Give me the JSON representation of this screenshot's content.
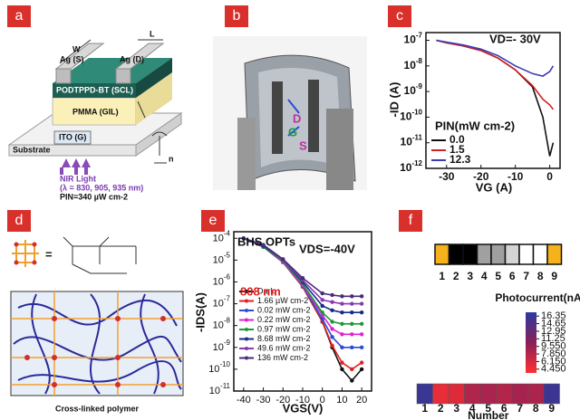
{
  "panel_labels": [
    "a",
    "b",
    "c",
    "d",
    "e",
    "f"
  ],
  "panel_a": {
    "width": "W",
    "length": "L",
    "source": "Ag (S)",
    "drain": "Ag (D)",
    "semiconductor": "PODTPPD-BT (SCL)",
    "dielectric": "PMMA (GIL)",
    "gate": "ITO (G)",
    "substrate": "Substrate",
    "light": "NIR Light",
    "wavelengths": "(λ = 830, 905, 935 nm)",
    "power": "PIN=340 µW cm-2",
    "repeat": "n"
  },
  "panel_b": {
    "labels": [
      "D",
      "G",
      "S"
    ]
  },
  "chart_data": [
    {
      "type": "line",
      "log_y": true,
      "markers": false,
      "x": [
        -33,
        -30,
        -25,
        -20,
        -15,
        -10,
        -5,
        -2,
        0,
        1
      ],
      "xlim": [
        -36,
        3
      ],
      "xticks": [
        -30,
        -20,
        -10,
        0
      ],
      "ylim": [
        1e-12,
        2e-07
      ],
      "yticks": [
        {
          "value": 1e-12,
          "label": "10-12"
        },
        {
          "value": 1e-11,
          "label": "10-11"
        },
        {
          "value": 1e-10,
          "label": "10-10"
        },
        {
          "value": 1e-09,
          "label": "10-9"
        },
        {
          "value": 1e-08,
          "label": "10-8"
        },
        {
          "value": 1e-07,
          "label": "10-7"
        }
      ],
      "xlabel": "VG (A)",
      "ylabel": "-ID (A)",
      "annotations": [
        "VD=- 30V"
      ],
      "legend_title": "PIN(mW cm-2)",
      "legend_loc": "lower left",
      "series": [
        {
          "name": "0.0",
          "color": "#111111",
          "values": [
            1e-07,
            8e-08,
            6e-08,
            4e-08,
            2e-08,
            7e-09,
            1.5e-09,
            1e-10,
            3e-12,
            1e-11
          ]
        },
        {
          "name": "1.5",
          "color": "#d42020",
          "values": [
            1e-07,
            8e-08,
            6e-08,
            4e-08,
            2e-08,
            7e-09,
            1.7e-09,
            5e-10,
            3e-10,
            2e-10
          ]
        },
        {
          "name": "12.3",
          "color": "#3b3bb5",
          "values": [
            1e-07,
            8.5e-08,
            6.5e-08,
            4.5e-08,
            2.5e-08,
            1e-08,
            5e-09,
            4e-09,
            6e-09,
            1e-08
          ]
        }
      ]
    },
    {
      "type": "line",
      "log_y": true,
      "markers": true,
      "x": [
        -40,
        -30,
        -20,
        -10,
        0,
        5,
        10,
        15,
        20
      ],
      "xlim": [
        -45,
        25
      ],
      "xticks": [
        -40,
        -30,
        -20,
        -10,
        0,
        10,
        20
      ],
      "ylim": [
        1e-11,
        0.0002
      ],
      "yticks": [
        {
          "value": 1e-11,
          "label": "10-11"
        },
        {
          "value": 1e-10,
          "label": "10-10"
        },
        {
          "value": 1e-09,
          "label": "10-9"
        },
        {
          "value": 1e-08,
          "label": "10-8"
        },
        {
          "value": 1e-07,
          "label": "10-7"
        },
        {
          "value": 1e-06,
          "label": "10-6"
        },
        {
          "value": 1e-05,
          "label": "10-5"
        },
        {
          "value": 0.0001,
          "label": "10-4"
        }
      ],
      "xlabel": "VGS(V)",
      "ylabel": "-IDS(A)",
      "annotations": [
        "BHS OPTs",
        "VDS=-40V",
        "808 nm"
      ],
      "legend_loc": "center left",
      "series": [
        {
          "name": "Dark",
          "color": "#111111",
          "values": [
            0.0001,
            4e-05,
            8e-06,
            6e-07,
            1.5e-08,
            1e-09,
            1e-10,
            3e-11,
            1e-10
          ]
        },
        {
          "name": "1.66 µW cm-2",
          "color": "#e02020",
          "values": [
            0.0001,
            4e-05,
            8e-06,
            6e-07,
            1.6e-08,
            1.2e-09,
            2e-10,
            1e-10,
            2e-10
          ]
        },
        {
          "name": "0.02 mW cm-2",
          "color": "#2a4bd8",
          "values": [
            0.0001,
            4e-05,
            8e-06,
            6.5e-07,
            2e-08,
            3e-09,
            1e-09,
            1e-09,
            1e-09
          ]
        },
        {
          "name": "0.22 mW cm-2",
          "color": "#e020d0",
          "values": [
            0.0001,
            4e-05,
            8e-06,
            7e-07,
            3e-08,
            7e-09,
            4e-09,
            4e-09,
            4e-09
          ]
        },
        {
          "name": "0.97 mW cm-2",
          "color": "#1a9a3a",
          "values": [
            0.0001,
            4e-05,
            9e-06,
            8e-07,
            4e-08,
            1.5e-08,
            1.2e-08,
            1.2e-08,
            1.2e-08
          ]
        },
        {
          "name": "8.68 mW cm-2",
          "color": "#1a2a8a",
          "values": [
            0.0001,
            4.5e-05,
            1e-05,
            1e-06,
            8e-08,
            5e-08,
            4e-08,
            4e-08,
            4e-08
          ]
        },
        {
          "name": "49.6 mW cm-2",
          "color": "#8a3ab0",
          "values": [
            0.0001,
            5e-05,
            1e-05,
            1.2e-06,
            1.5e-07,
            1.2e-07,
            1e-07,
            1e-07,
            1e-07
          ]
        },
        {
          "name": "136 mW cm-2",
          "color": "#4a2a7a",
          "values": [
            0.0001,
            5e-05,
            1.1e-05,
            1.5e-06,
            3e-07,
            2.5e-07,
            2.2e-07,
            2.2e-07,
            2.2e-07
          ]
        }
      ]
    }
  ],
  "panel_d": {
    "equals": "=",
    "caption": "Cross-linked polymer"
  },
  "panel_f": {
    "categories": [
      "1",
      "2",
      "3",
      "4",
      "5",
      "6",
      "7",
      "8",
      "9"
    ],
    "box_colors": [
      "#f5b21b",
      "#000000",
      "#000000",
      "#a0a0a0",
      "#a0a0a0",
      "#d4d4d4",
      "#ffffff",
      "#ffffff",
      "#f5b21b"
    ],
    "heatmap_values": [
      16.2,
      5.0,
      5.5,
      8.2,
      8.6,
      8.0,
      8.8,
      8.4,
      16.0
    ],
    "colorbar_title": "Photocurrent(nA)",
    "clim": [
      3.6,
      17.2
    ],
    "cticks": [
      16.35,
      14.65,
      12.95,
      11.25,
      {
        "value": 9.55,
        "label": "9.550"
      },
      {
        "value": 7.85,
        "label": "7.850"
      },
      {
        "value": 6.15,
        "label": "6.150"
      },
      {
        "value": 4.45,
        "label": "4.450"
      }
    ],
    "xlabel": "Number"
  }
}
